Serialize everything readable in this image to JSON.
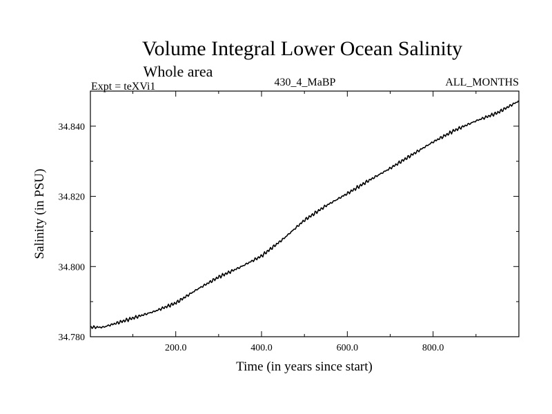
{
  "chart_data": {
    "type": "line",
    "title": "Volume Integral Lower Ocean Salinity",
    "subtitle": "Whole area",
    "experiment_label": "Expt = teXVi1",
    "center_label": "430_4_MaBP",
    "right_label": "ALL_MONTHS",
    "xlabel": "Time (in years since start)",
    "ylabel": "Salinity (in PSU)",
    "xlim": [
      1,
      1000
    ],
    "ylim": [
      34.78,
      34.85
    ],
    "xticks": [
      200,
      400,
      600,
      800
    ],
    "xtick_labels": [
      "200.0",
      "400.0",
      "600.0",
      "800.0"
    ],
    "yticks": [
      34.78,
      34.8,
      34.82,
      34.84
    ],
    "ytick_labels": [
      "34.780",
      "34.800",
      "34.820",
      "34.840"
    ],
    "grid": false,
    "series": [
      {
        "name": "Salinity",
        "color": "#000000",
        "x": [
          1,
          30,
          60,
          100,
          150,
          200,
          250,
          300,
          350,
          400,
          450,
          500,
          550,
          600,
          650,
          700,
          750,
          800,
          850,
          900,
          950,
          1000
        ],
        "values": [
          34.7827,
          34.7827,
          34.7838,
          34.7853,
          34.7872,
          34.7896,
          34.7935,
          34.797,
          34.7998,
          34.803,
          34.8078,
          34.8132,
          34.8173,
          34.8208,
          34.8245,
          34.828,
          34.8318,
          34.8355,
          34.8388,
          34.8415,
          34.8438,
          34.8472
        ]
      }
    ]
  }
}
